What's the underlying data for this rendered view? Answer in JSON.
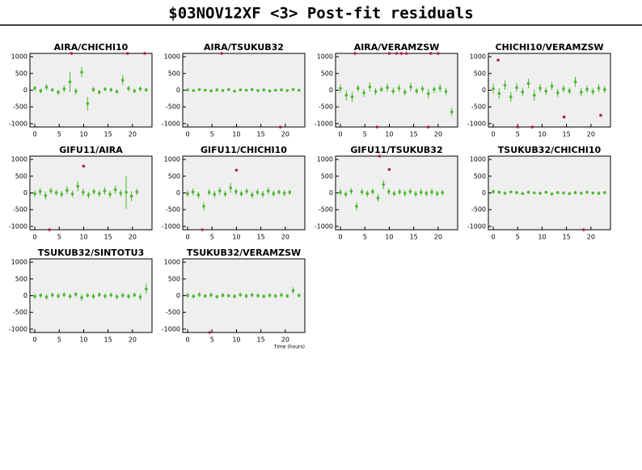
{
  "title": "$03NOV12XF <3> Post-fit residuals",
  "chart_data": [
    {
      "type": "scatter",
      "title": "AIRA/CHICHI10",
      "xlim": [
        -1,
        24
      ],
      "xticks": [
        0,
        5,
        10,
        15,
        20
      ],
      "ylim": [
        -1100,
        1100
      ],
      "yticks": [
        -1000,
        -500,
        0,
        500,
        1000
      ],
      "series": [
        {
          "color": "#4cb830",
          "x": [
            0,
            1.2,
            2.4,
            3.6,
            4.8,
            6,
            7.2,
            8.4,
            9.6,
            10.8,
            12,
            13.2,
            14.4,
            15.6,
            16.8,
            18,
            19.2,
            20.4,
            21.6,
            22.8
          ],
          "values": [
            60,
            -20,
            90,
            10,
            -60,
            40,
            250,
            -30,
            540,
            -400,
            20,
            -60,
            30,
            10,
            -40,
            300,
            50,
            -20,
            40,
            10
          ],
          "errors": [
            80,
            70,
            90,
            60,
            80,
            100,
            300,
            90,
            150,
            200,
            80,
            70,
            60,
            60,
            70,
            150,
            80,
            60,
            70,
            60
          ]
        },
        {
          "color": "#b0204a",
          "x": [
            7.5,
            19,
            22.5
          ],
          "values": [
            1100,
            1100,
            1100
          ]
        }
      ]
    },
    {
      "type": "scatter",
      "title": "AIRA/TSUKUB32",
      "xlim": [
        -1,
        24
      ],
      "xticks": [
        0,
        5,
        10,
        15,
        20
      ],
      "ylim": [
        -1100,
        1100
      ],
      "yticks": [
        -1000,
        -500,
        0,
        500,
        1000
      ],
      "series": [
        {
          "color": "#4cb830",
          "x": [
            0,
            1.2,
            2.4,
            3.6,
            4.8,
            6,
            7.2,
            8.4,
            9.6,
            10.8,
            12,
            13.2,
            14.4,
            15.6,
            16.8,
            18,
            19.2,
            20.4,
            21.6,
            22.8
          ],
          "values": [
            10,
            -10,
            20,
            0,
            -20,
            10,
            -10,
            20,
            -30,
            10,
            0,
            20,
            -10,
            10,
            -20,
            0,
            10,
            -10,
            20,
            0
          ],
          "errors": [
            40,
            30,
            40,
            30,
            40,
            30,
            40,
            50,
            40,
            30,
            40,
            30,
            40,
            30,
            40,
            30,
            40,
            30,
            40,
            30
          ]
        },
        {
          "color": "#b0204a",
          "x": [
            7,
            19
          ],
          "values": [
            1100,
            -1100
          ]
        }
      ]
    },
    {
      "type": "scatter",
      "title": "AIRA/VERAMZSW",
      "xlim": [
        -1,
        24
      ],
      "xticks": [
        0,
        5,
        10,
        15,
        20
      ],
      "ylim": [
        -1100,
        1100
      ],
      "yticks": [
        -1000,
        -500,
        0,
        500,
        1000
      ],
      "series": [
        {
          "color": "#4cb830",
          "x": [
            0,
            1.2,
            2.4,
            3.6,
            4.8,
            6,
            7.2,
            8.4,
            9.6,
            10.8,
            12,
            13.2,
            14.4,
            15.6,
            16.8,
            18,
            19.2,
            20.4,
            21.6,
            22.8
          ],
          "values": [
            50,
            -150,
            -200,
            60,
            -80,
            100,
            -40,
            20,
            80,
            -30,
            60,
            -60,
            100,
            -20,
            40,
            -100,
            20,
            60,
            -40,
            -650
          ],
          "errors": [
            120,
            150,
            150,
            100,
            120,
            140,
            100,
            80,
            120,
            100,
            110,
            100,
            130,
            90,
            100,
            140,
            100,
            120,
            110,
            120
          ]
        },
        {
          "color": "#b0204a",
          "x": [
            3,
            7.5,
            10,
            11.5,
            12.5,
            13.5,
            18,
            18.5,
            20
          ],
          "values": [
            1100,
            -1100,
            1100,
            1100,
            1100,
            1100,
            -1100,
            1100,
            1100
          ]
        }
      ]
    },
    {
      "type": "scatter",
      "title": "CHICHI10/VERAMZSW",
      "xlim": [
        -1,
        24
      ],
      "xticks": [
        0,
        5,
        10,
        15,
        20
      ],
      "ylim": [
        -1100,
        1100
      ],
      "yticks": [
        -1000,
        -500,
        0,
        500,
        1000
      ],
      "series": [
        {
          "color": "#4cb830",
          "x": [
            0,
            1.2,
            2.4,
            3.6,
            4.8,
            6,
            7.2,
            8.4,
            9.6,
            10.8,
            12,
            13.2,
            14.4,
            15.6,
            16.8,
            18,
            19.2,
            20.4,
            21.6,
            22.8
          ],
          "values": [
            40,
            -100,
            150,
            -200,
            80,
            -50,
            200,
            -150,
            60,
            -30,
            120,
            -80,
            40,
            -20,
            250,
            -60,
            30,
            -40,
            60,
            20
          ],
          "errors": [
            150,
            160,
            140,
            150,
            130,
            120,
            140,
            160,
            120,
            110,
            130,
            120,
            110,
            100,
            150,
            120,
            110,
            100,
            120,
            100
          ]
        },
        {
          "color": "#b0204a",
          "x": [
            1,
            5,
            8,
            14.5,
            22
          ],
          "values": [
            900,
            -1100,
            -1100,
            -800,
            -750
          ]
        }
      ]
    },
    {
      "type": "scatter",
      "title": "GIFU11/AIRA",
      "xlim": [
        -1,
        24
      ],
      "xticks": [
        0,
        5,
        10,
        15,
        20
      ],
      "ylim": [
        -1100,
        1100
      ],
      "yticks": [
        -1000,
        -500,
        0,
        500,
        1000
      ],
      "series": [
        {
          "color": "#4cb830",
          "x": [
            0,
            1.1,
            2.2,
            3.3,
            4.4,
            5.5,
            6.6,
            7.7,
            8.8,
            9.9,
            11,
            12.1,
            13.2,
            14.3,
            15.4,
            16.5,
            17.6,
            18.7,
            19.8,
            20.9
          ],
          "values": [
            -20,
            40,
            -80,
            60,
            10,
            -40,
            80,
            -30,
            200,
            20,
            -60,
            40,
            -20,
            60,
            -40,
            100,
            -10,
            20,
            -100,
            30
          ],
          "errors": [
            100,
            110,
            120,
            100,
            90,
            100,
            120,
            100,
            150,
            110,
            100,
            90,
            100,
            110,
            100,
            120,
            100,
            500,
            150,
            100
          ]
        },
        {
          "color": "#b0204a",
          "x": [
            3,
            10
          ],
          "values": [
            -1100,
            800
          ]
        }
      ]
    },
    {
      "type": "scatter",
      "title": "GIFU11/CHICHI10",
      "xlim": [
        -1,
        24
      ],
      "xticks": [
        0,
        5,
        10,
        15,
        20
      ],
      "ylim": [
        -1100,
        1100
      ],
      "yticks": [
        -1000,
        -500,
        0,
        500,
        1000
      ],
      "series": [
        {
          "color": "#4cb830",
          "x": [
            0,
            1.1,
            2.2,
            3.3,
            4.4,
            5.5,
            6.6,
            7.7,
            8.8,
            9.9,
            11,
            12.1,
            13.2,
            14.3,
            15.4,
            16.5,
            17.6,
            18.7,
            19.8,
            20.9
          ],
          "values": [
            -20,
            30,
            -60,
            -400,
            20,
            -40,
            60,
            -30,
            150,
            40,
            -20,
            50,
            -60,
            20,
            -40,
            60,
            -20,
            30,
            -10,
            20
          ],
          "errors": [
            90,
            100,
            100,
            120,
            90,
            100,
            110,
            90,
            150,
            100,
            90,
            90,
            100,
            90,
            100,
            110,
            90,
            80,
            90,
            80
          ]
        },
        {
          "color": "#b0204a",
          "x": [
            3,
            10
          ],
          "values": [
            -1100,
            680
          ]
        }
      ]
    },
    {
      "type": "scatter",
      "title": "GIFU11/TSUKUB32",
      "xlim": [
        -1,
        24
      ],
      "xticks": [
        0,
        5,
        10,
        15,
        20
      ],
      "ylim": [
        -1100,
        1100
      ],
      "yticks": [
        -1000,
        -500,
        0,
        500,
        1000
      ],
      "series": [
        {
          "color": "#4cb830",
          "x": [
            0,
            1.1,
            2.2,
            3.3,
            4.4,
            5.5,
            6.6,
            7.7,
            8.8,
            9.9,
            11,
            12.1,
            13.2,
            14.3,
            15.4,
            16.5,
            17.6,
            18.7,
            19.8,
            20.9
          ],
          "values": [
            20,
            -40,
            50,
            -400,
            30,
            -20,
            40,
            -150,
            250,
            40,
            -20,
            30,
            -10,
            40,
            -30,
            20,
            -10,
            30,
            -20,
            10
          ],
          "errors": [
            100,
            90,
            100,
            120,
            90,
            100,
            90,
            110,
            130,
            100,
            90,
            90,
            100,
            90,
            90,
            100,
            90,
            100,
            90,
            80
          ]
        },
        {
          "color": "#b0204a",
          "x": [
            8,
            10
          ],
          "values": [
            1100,
            700
          ]
        }
      ]
    },
    {
      "type": "scatter",
      "title": "TSUKUB32/CHICHI10",
      "xlim": [
        -1,
        24
      ],
      "xticks": [
        0,
        5,
        10,
        15,
        20
      ],
      "ylim": [
        -1100,
        1100
      ],
      "yticks": [
        -1000,
        -500,
        0,
        500,
        1000
      ],
      "series": [
        {
          "color": "#4cb830",
          "x": [
            0,
            1.2,
            2.4,
            3.6,
            4.8,
            6,
            7.2,
            8.4,
            9.6,
            10.8,
            12,
            13.2,
            14.4,
            15.6,
            16.8,
            18,
            19.2,
            20.4,
            21.6,
            22.8
          ],
          "values": [
            40,
            20,
            -10,
            30,
            10,
            -20,
            20,
            0,
            -10,
            20,
            -30,
            10,
            0,
            -20,
            10,
            -10,
            20,
            0,
            -10,
            10
          ],
          "errors": [
            60,
            50,
            50,
            40,
            50,
            40,
            50,
            40,
            50,
            40,
            50,
            40,
            50,
            40,
            50,
            40,
            50,
            40,
            50,
            40
          ]
        },
        {
          "color": "#b0204a",
          "x": [
            18.5
          ],
          "values": [
            -1100
          ]
        }
      ]
    },
    {
      "type": "scatter",
      "title": "TSUKUB32/SINTOTU3",
      "xlim": [
        -1,
        24
      ],
      "xticks": [
        0,
        5,
        10,
        15,
        20
      ],
      "ylim": [
        -1100,
        1100
      ],
      "yticks": [
        -1000,
        -500,
        0,
        500,
        1000
      ],
      "series": [
        {
          "color": "#4cb830",
          "x": [
            0,
            1.2,
            2.4,
            3.6,
            4.8,
            6,
            7.2,
            8.4,
            9.6,
            10.8,
            12,
            13.2,
            14.4,
            15.6,
            16.8,
            18,
            19.2,
            20.4,
            21.6,
            22.8
          ],
          "values": [
            -20,
            10,
            -40,
            20,
            -10,
            30,
            -20,
            40,
            -60,
            10,
            -20,
            30,
            -10,
            20,
            -30,
            10,
            -20,
            20,
            -40,
            200
          ],
          "errors": [
            80,
            70,
            80,
            70,
            80,
            70,
            80,
            70,
            100,
            70,
            80,
            70,
            80,
            70,
            80,
            70,
            80,
            70,
            100,
            150
          ]
        },
        {
          "color": "#b0204a",
          "x": [],
          "values": []
        }
      ]
    },
    {
      "type": "scatter",
      "title": "TSUKUB32/VERAMZSW",
      "xlabel": "Time (hours)",
      "xlim": [
        -1,
        24
      ],
      "xticks": [
        0,
        5,
        10,
        15,
        20
      ],
      "ylim": [
        -1100,
        1100
      ],
      "yticks": [
        -1000,
        -500,
        0,
        500,
        1000
      ],
      "series": [
        {
          "color": "#4cb830",
          "x": [
            0,
            1.2,
            2.4,
            3.6,
            4.8,
            6,
            7.2,
            8.4,
            9.6,
            10.8,
            12,
            13.2,
            14.4,
            15.6,
            16.8,
            18,
            19.2,
            20.4,
            21.6,
            22.8
          ],
          "values": [
            10,
            -20,
            30,
            -10,
            20,
            -30,
            10,
            0,
            -20,
            30,
            -10,
            20,
            0,
            -20,
            10,
            -10,
            20,
            -10,
            150,
            10
          ],
          "errors": [
            70,
            60,
            70,
            60,
            70,
            60,
            70,
            60,
            70,
            60,
            70,
            60,
            70,
            60,
            70,
            60,
            70,
            60,
            100,
            60
          ]
        },
        {
          "color": "#b0204a",
          "x": [
            4.5
          ],
          "values": [
            -1100
          ]
        }
      ]
    }
  ]
}
